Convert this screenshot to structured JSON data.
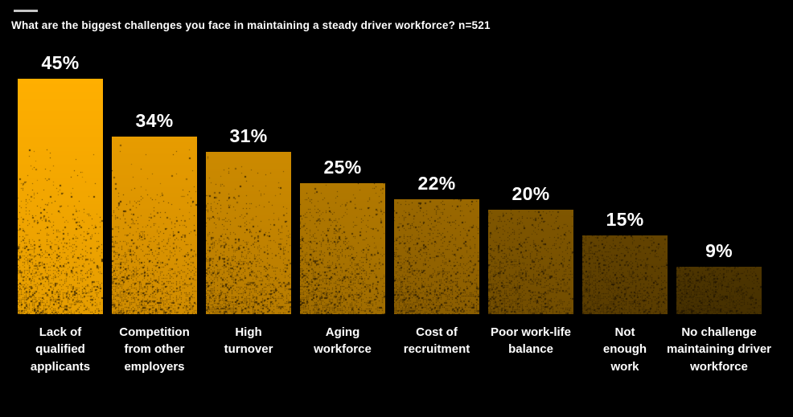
{
  "chart_data": {
    "type": "bar",
    "title": "What are the biggest challenges you face in maintaining a steady driver workforce? n=521",
    "sample_size": "n=521",
    "unit": "%",
    "categories": [
      "Lack of\nqualified\napplicants",
      "Competition\nfrom other\nemployers",
      "High\nturnover",
      "Aging\nworkforce",
      "Cost of\nrecruitment",
      "Poor work-life\nbalance",
      "Not\nenough\nwork",
      "No challenge\nmaintaining driver\nworkforce"
    ],
    "values": [
      45,
      34,
      31,
      25,
      22,
      20,
      15,
      9
    ],
    "value_labels": [
      "45%",
      "34%",
      "31%",
      "25%",
      "22%",
      "20%",
      "15%",
      "9%"
    ],
    "bar_colors": [
      "#FFAF00",
      "#E79C00",
      "#CC8A00",
      "#B27900",
      "#9A6800",
      "#7F5600",
      "#634300",
      "#4D3500"
    ],
    "background": "#000000",
    "text_color": "#FFFFFF",
    "accent_line_color": "#C6C6C6",
    "xlabel": "",
    "ylabel": "",
    "ylim": [
      0,
      50
    ],
    "grid": false,
    "legend": "none"
  }
}
